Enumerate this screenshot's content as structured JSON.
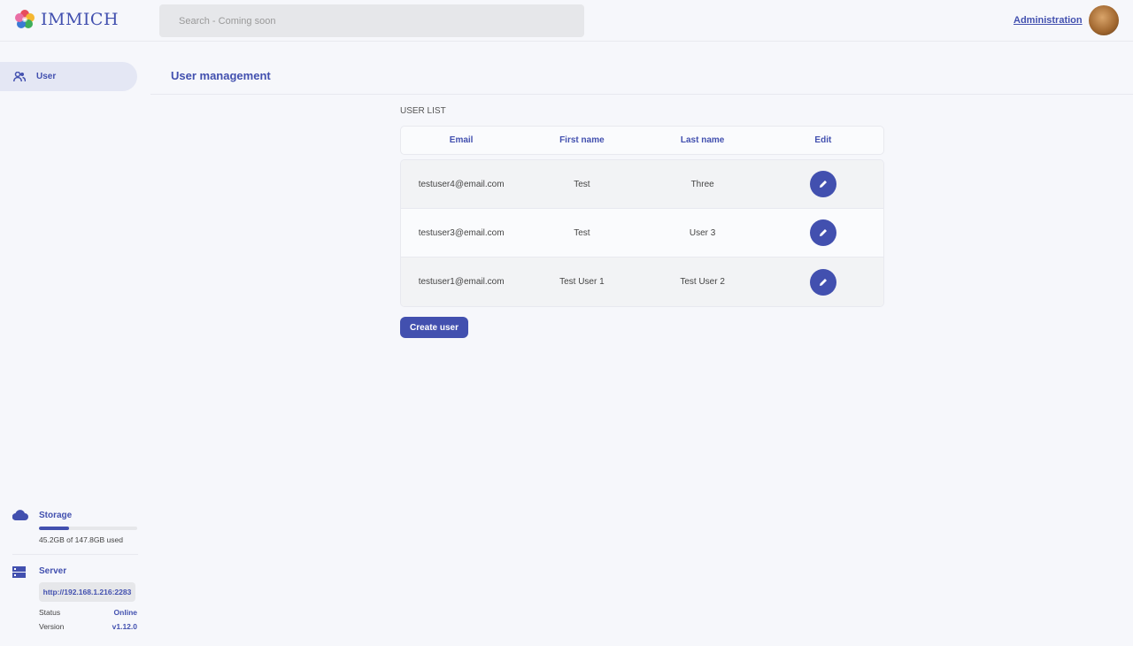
{
  "header": {
    "logo_text": "IMMICH",
    "search_placeholder": "Search - Coming soon",
    "admin_link": "Administration"
  },
  "sidebar": {
    "items": [
      {
        "label": "User",
        "icon": "users-icon"
      }
    ],
    "storage": {
      "label": "Storage",
      "usage_text": "45.2GB of 147.8GB used",
      "used_fraction": 0.306
    },
    "server": {
      "label": "Server",
      "url": "http://192.168.1.216:2283",
      "status_label": "Status",
      "status_value": "Online",
      "version_label": "Version",
      "version_value": "v1.12.0"
    }
  },
  "main": {
    "title": "User management",
    "section_label": "USER LIST",
    "columns": [
      "Email",
      "First name",
      "Last name",
      "Edit"
    ],
    "rows": [
      {
        "email": "testuser4@email.com",
        "first": "Test",
        "last": "Three"
      },
      {
        "email": "testuser3@email.com",
        "first": "Test",
        "last": "User 3"
      },
      {
        "email": "testuser1@email.com",
        "first": "Test User 1",
        "last": "Test User 2"
      }
    ],
    "create_button": "Create user"
  },
  "colors": {
    "accent": "#4250af",
    "background": "#f6f7fb"
  }
}
